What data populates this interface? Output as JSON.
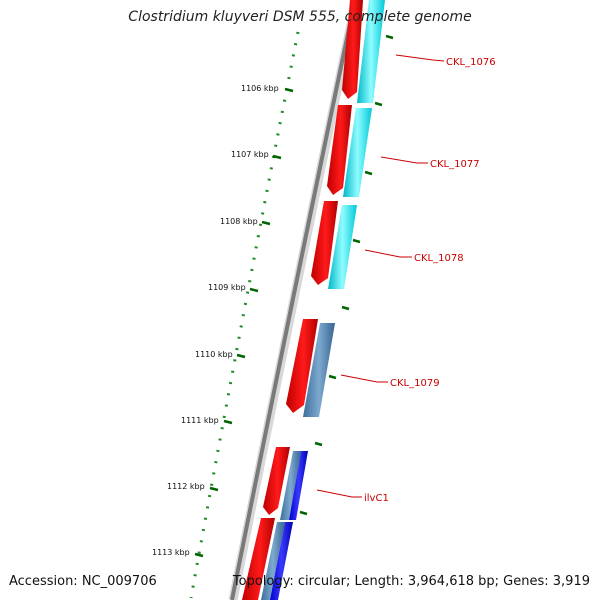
{
  "title": "Clostridium kluyveri DSM 555, complete genome",
  "footer": {
    "accession": "Accession: NC_009706",
    "summary": "Topology: circular; Length: 3,964,618 bp; Genes: 3,919"
  },
  "ticks": [
    "1106 kbp",
    "1107 kbp",
    "1108 kbp",
    "1109 kbp",
    "1110 kbp",
    "1111 kbp",
    "1112 kbp",
    "1113 kbp"
  ],
  "genes": [
    {
      "label": "CKL_1076",
      "feature_color": "#00e5ee"
    },
    {
      "label": "CKL_1077",
      "feature_color": "#00e5ee"
    },
    {
      "label": "CKL_1078",
      "feature_color": "#00e5ee"
    },
    {
      "label": "CKL_1079",
      "feature_color": "#4682b4"
    },
    {
      "label": "ilvC1",
      "feature_color": "#0000ff"
    }
  ],
  "colors": {
    "backbone": "#8a8a8a",
    "cds": "#ff0000",
    "label_text": "#cc0000",
    "tick": "#006400",
    "gc_track": "#228b22"
  }
}
